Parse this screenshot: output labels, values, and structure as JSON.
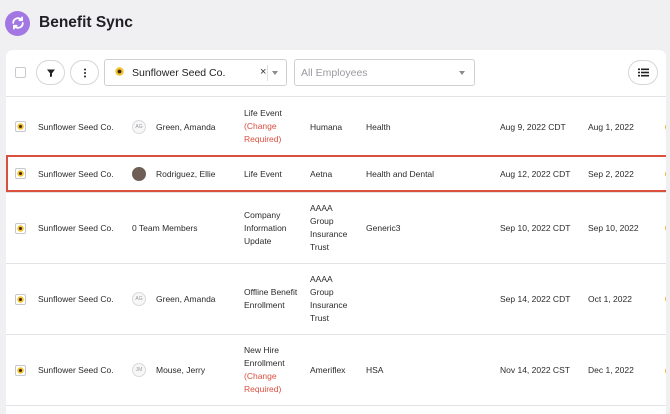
{
  "app": {
    "title": "Benefit Sync",
    "logo_icon": "sync-icon",
    "accent_color": "#a277e3"
  },
  "toolbar": {
    "filter_icon": "filter-icon",
    "more_icon": "vertical-dots-icon",
    "company_filter": {
      "value": "Sunflower Seed Co.",
      "clear": "×"
    },
    "employee_filter": {
      "placeholder": "All Employees"
    },
    "view_icon": "list-view-icon"
  },
  "rows": [
    {
      "company": "Sunflower Seed Co.",
      "avatar_initials": "AG",
      "employee": "Green, Amanda",
      "event": "Life Event",
      "event_note": "(Change Required)",
      "carrier": "Humana",
      "plans": "Health",
      "submitted": "Aug 9, 2022 CDT",
      "effective": "Aug 1, 2022"
    },
    {
      "company": "Sunflower Seed Co.",
      "avatar_initials": "",
      "employee": "Rodriguez, Ellie",
      "event": "Life Event",
      "event_note": "",
      "carrier": "Aetna",
      "plans": "Health and Dental",
      "submitted": "Aug 12, 2022 CDT",
      "effective": "Sep 2, 2022"
    },
    {
      "company": "Sunflower Seed Co.",
      "avatar_initials": "",
      "employee": "0 Team Members",
      "event": "Company Information Update",
      "event_note": "",
      "carrier": "AAAA Group Insurance Trust",
      "plans": "Generic3",
      "submitted": "Sep 10, 2022 CDT",
      "effective": "Sep 10, 2022"
    },
    {
      "company": "Sunflower Seed Co.",
      "avatar_initials": "AG",
      "employee": "Green, Amanda",
      "event": "Offline Benefit Enrollment",
      "event_note": "",
      "carrier": "AAAA Group Insurance Trust",
      "plans": "",
      "submitted": "Sep 14, 2022 CDT",
      "effective": "Oct 1, 2022"
    },
    {
      "company": "Sunflower Seed Co.",
      "avatar_initials": "JM",
      "employee": "Mouse, Jerry",
      "event": "New Hire Enrollment",
      "event_note": "(Change Required)",
      "carrier": "Ameriflex",
      "plans": "HSA",
      "submitted": "Nov 14, 2022 CST",
      "effective": "Dec 1, 2022"
    }
  ],
  "highlight_color": "#d9503f",
  "status_dot_color": "#f2b32e"
}
